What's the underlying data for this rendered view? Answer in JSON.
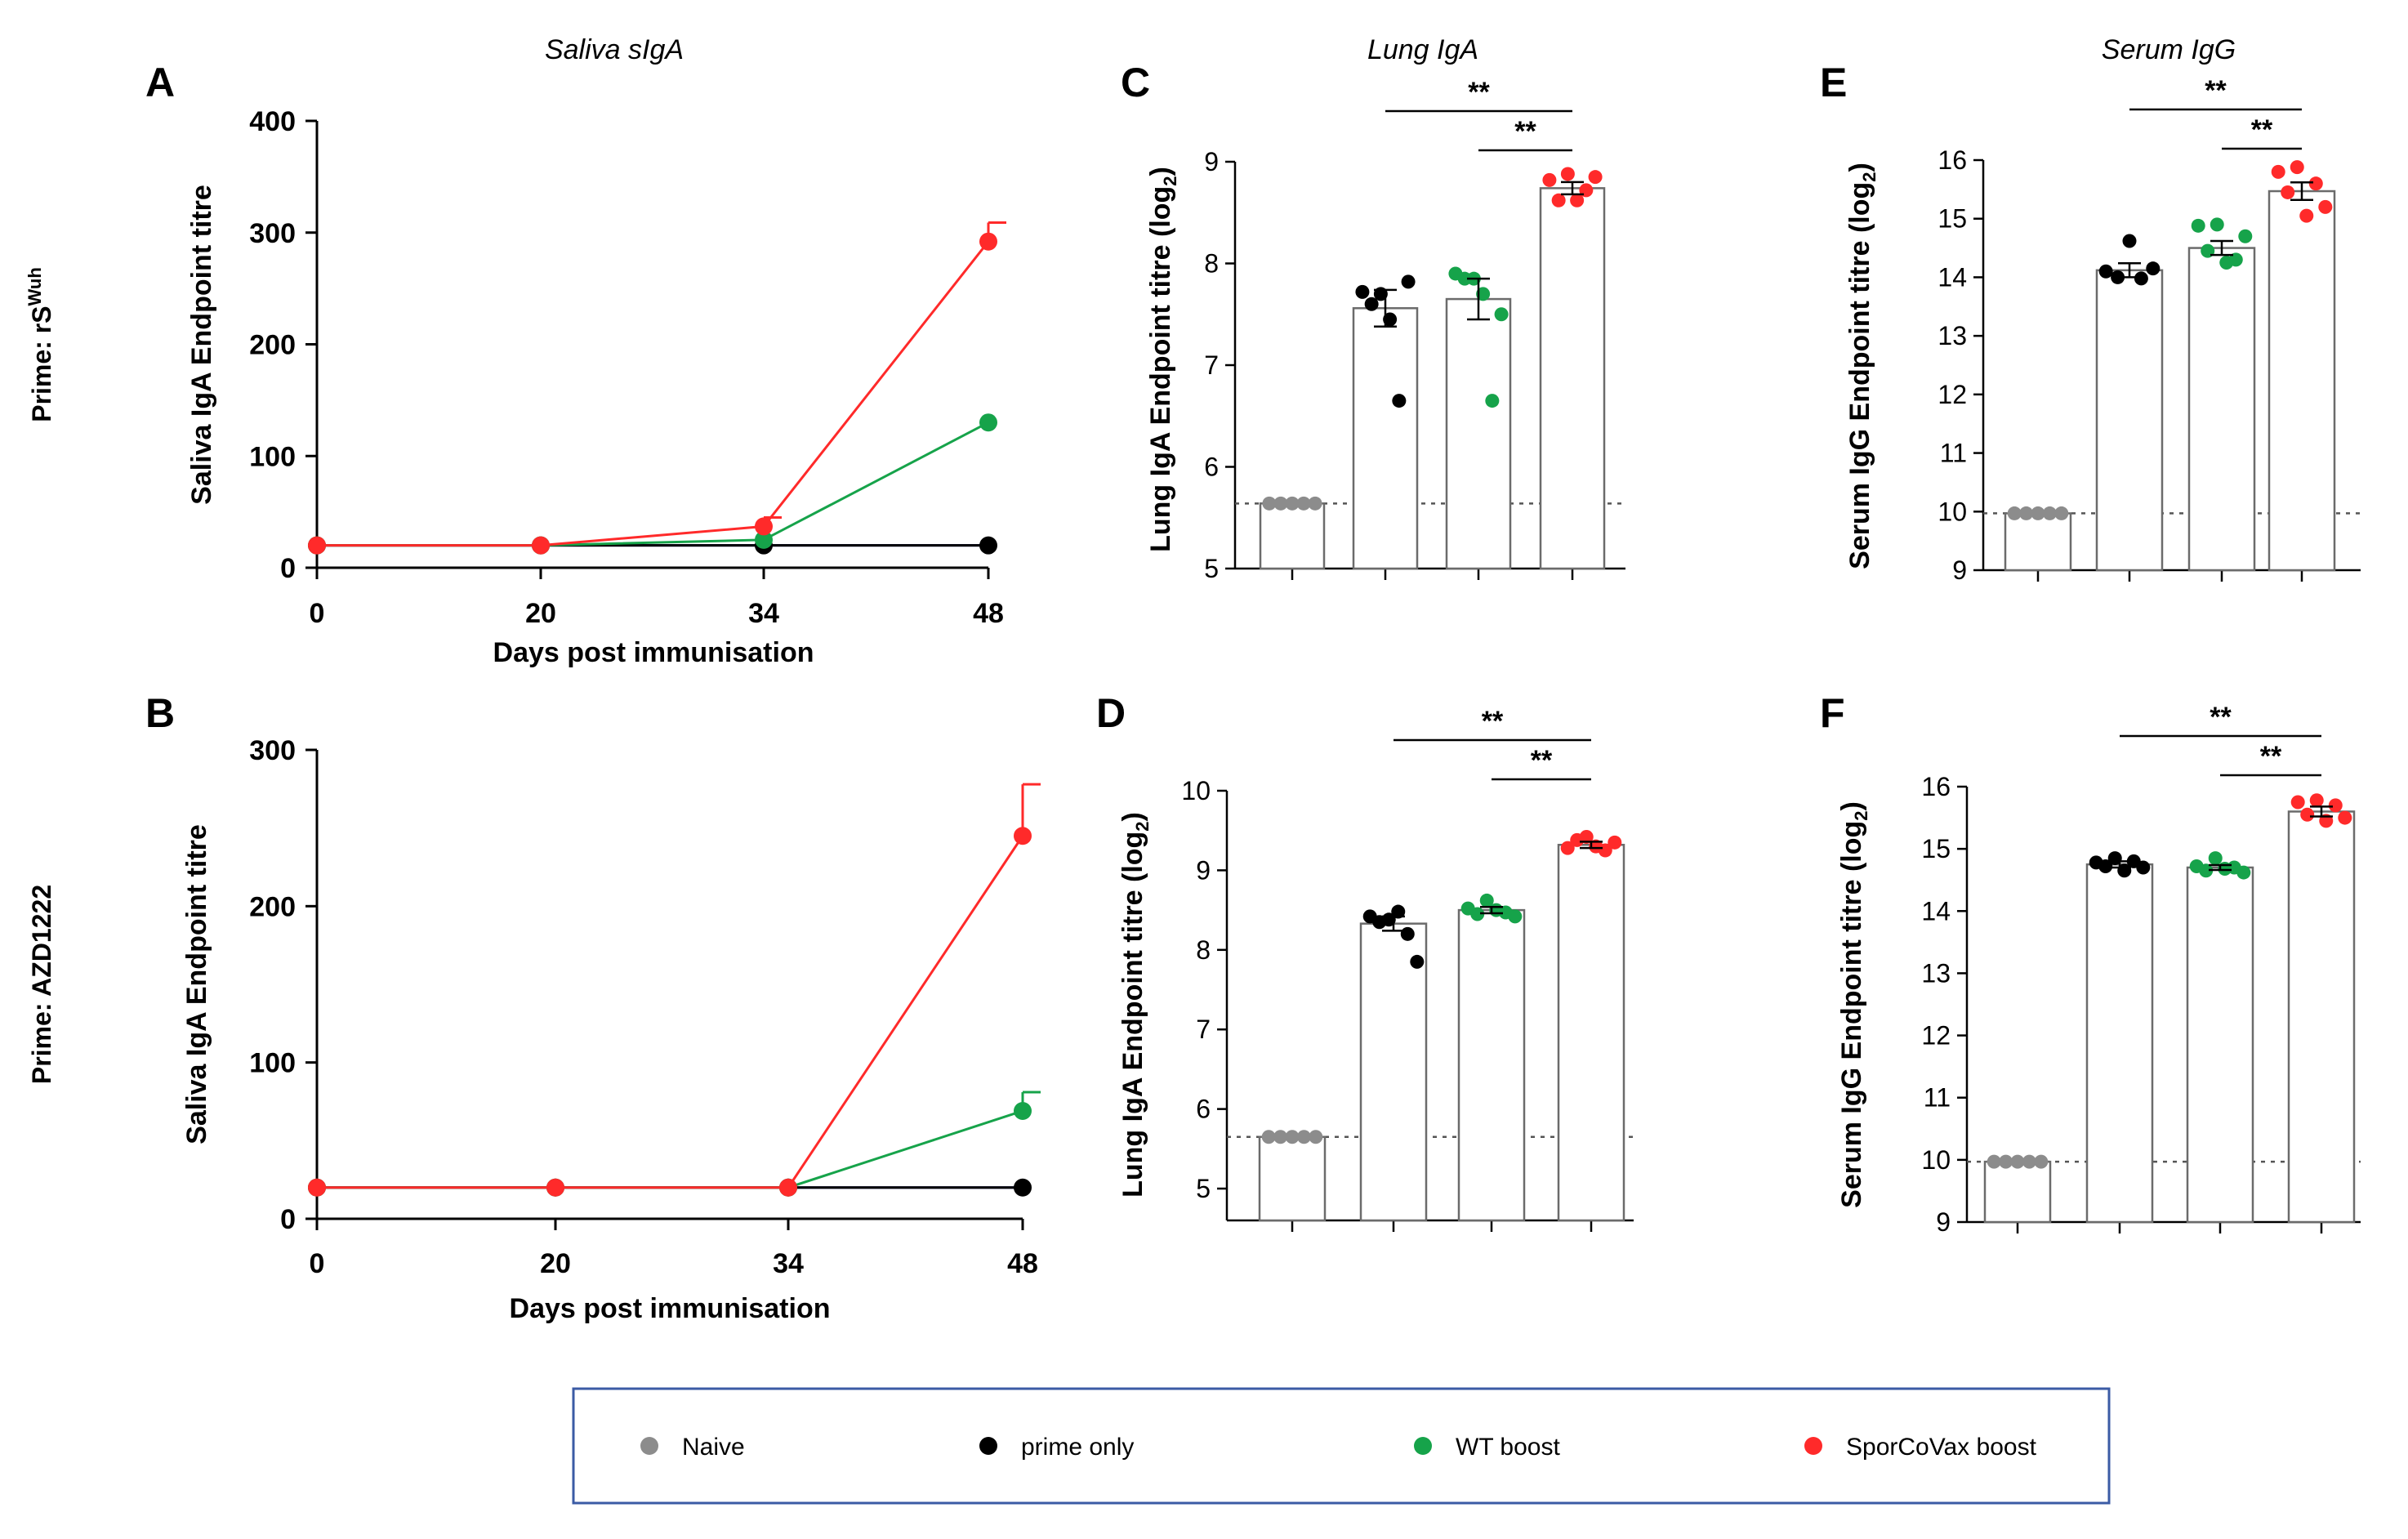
{
  "chart_data": [
    {
      "id": "A",
      "type": "line",
      "panel_label": "A",
      "title": "Saliva sIgA",
      "row_label": "Prime: rS",
      "row_label_sup": "Wuh",
      "ylabel": "Saliva IgA Endpoint titre",
      "xlabel": "Days post immunisation",
      "x": [
        0,
        20,
        34,
        48
      ],
      "xticks": [
        "0",
        "20",
        "34",
        "48"
      ],
      "ylim": [
        0,
        400
      ],
      "yticks": [
        "0",
        "100",
        "200",
        "300",
        "400"
      ],
      "series": [
        {
          "name": "Naive",
          "color": "#000080",
          "values": [
            20,
            20,
            20,
            20
          ],
          "error": [
            0,
            0,
            0,
            0
          ],
          "show_markers": false
        },
        {
          "name": "prime only",
          "color": "#000000",
          "values": [
            20,
            20,
            20,
            20
          ],
          "error": [
            0,
            0,
            0,
            0
          ],
          "show_markers": true
        },
        {
          "name": "WT boost",
          "color": "#16a34a",
          "values": [
            20,
            20,
            25,
            130
          ],
          "error": [
            0,
            0,
            0,
            0
          ],
          "show_markers": true
        },
        {
          "name": "SporCoVax boost",
          "color": "#ff2a2a",
          "values": [
            20,
            20,
            37,
            292
          ],
          "error": [
            0,
            0,
            8,
            17
          ],
          "show_markers": true
        }
      ]
    },
    {
      "id": "B",
      "type": "line",
      "panel_label": "B",
      "title": "",
      "row_label": "Prime: AZD1222",
      "row_label_sup": "",
      "ylabel": "Saliva IgA Endpoint titre",
      "xlabel": "Days post immunisation",
      "x": [
        0,
        20,
        34,
        48
      ],
      "xticks": [
        "0",
        "20",
        "34",
        "48"
      ],
      "ylim": [
        0,
        300
      ],
      "yticks": [
        "0",
        "100",
        "200",
        "300"
      ],
      "series": [
        {
          "name": "Naive",
          "color": "#000080",
          "values": [
            20,
            20,
            20,
            20
          ],
          "error": [
            0,
            0,
            0,
            0
          ],
          "show_markers": false
        },
        {
          "name": "prime only",
          "color": "#000000",
          "values": [
            20,
            20,
            20,
            20
          ],
          "error": [
            0,
            0,
            0,
            0
          ],
          "show_markers": true
        },
        {
          "name": "WT boost",
          "color": "#16a34a",
          "values": [
            20,
            20,
            20,
            69
          ],
          "error": [
            0,
            0,
            0,
            12
          ],
          "show_markers": true
        },
        {
          "name": "SporCoVax boost",
          "color": "#ff2a2a",
          "values": [
            20,
            20,
            20,
            245
          ],
          "error": [
            0,
            0,
            0,
            33
          ],
          "show_markers": true
        }
      ]
    },
    {
      "id": "C",
      "type": "bar",
      "panel_label": "C",
      "title": "Lung IgA",
      "ylabel": "Lung IgA Endpoint titre (log",
      "ylabel_sub": "2",
      "ylabel_end": ")",
      "ylim": [
        5,
        9
      ],
      "yticks": [
        "5",
        "6",
        "7",
        "8",
        "9"
      ],
      "baseline": 5.64,
      "categories": [
        "Naive",
        "prime only",
        "WT boost",
        "SporCoVax boost"
      ],
      "bars": [
        {
          "group": "Naive",
          "color": "#8c8c8c",
          "mean": 5.64,
          "sem": 0,
          "points": [
            5.64,
            5.64,
            5.64,
            5.64,
            5.64
          ]
        },
        {
          "group": "prime only",
          "color": "#000000",
          "mean": 7.56,
          "sem": 0.18,
          "points": [
            7.72,
            7.6,
            7.7,
            7.45,
            6.65,
            7.82
          ]
        },
        {
          "group": "WT boost",
          "color": "#16a34a",
          "mean": 7.65,
          "sem": 0.2,
          "points": [
            7.9,
            7.85,
            7.85,
            7.7,
            6.65,
            7.5
          ]
        },
        {
          "group": "SporCoVax boost",
          "color": "#ff2a2a",
          "mean": 8.74,
          "sem": 0.06,
          "points": [
            8.82,
            8.62,
            8.88,
            8.62,
            8.72,
            8.85
          ]
        }
      ],
      "significance": [
        {
          "from": 1,
          "to": 3,
          "label": "**"
        },
        {
          "from": 2,
          "to": 3,
          "label": "**"
        }
      ]
    },
    {
      "id": "D",
      "type": "bar",
      "panel_label": "D",
      "title": "",
      "ylabel": "Lung IgA Endpoint titre (log",
      "ylabel_sub": "2",
      "ylabel_end": ")",
      "ylim": [
        4.6,
        10
      ],
      "yticks": [
        "5",
        "6",
        "7",
        "8",
        "9",
        "10"
      ],
      "baseline": 5.65,
      "categories": [
        "Naive",
        "prime only",
        "WT boost",
        "SporCoVax boost"
      ],
      "bars": [
        {
          "group": "Naive",
          "color": "#8c8c8c",
          "mean": 5.65,
          "sem": 0,
          "points": [
            5.65,
            5.65,
            5.65,
            5.65,
            5.65
          ]
        },
        {
          "group": "prime only",
          "color": "#000000",
          "mean": 8.33,
          "sem": 0.09,
          "points": [
            8.42,
            8.35,
            8.38,
            8.48,
            8.2,
            7.85
          ]
        },
        {
          "group": "WT boost",
          "color": "#16a34a",
          "mean": 8.5,
          "sem": 0.04,
          "points": [
            8.52,
            8.45,
            8.62,
            8.5,
            8.47,
            8.42
          ]
        },
        {
          "group": "SporCoVax boost",
          "color": "#ff2a2a",
          "mean": 9.32,
          "sem": 0.04,
          "points": [
            9.28,
            9.38,
            9.42,
            9.3,
            9.25,
            9.35
          ]
        }
      ],
      "significance": [
        {
          "from": 1,
          "to": 3,
          "label": "**"
        },
        {
          "from": 2,
          "to": 3,
          "label": "**"
        }
      ]
    },
    {
      "id": "E",
      "type": "bar",
      "panel_label": "E",
      "title": "Serum IgG",
      "ylabel": "Serum IgG Endpoint titre (log",
      "ylabel_sub": "2",
      "ylabel_end": ")",
      "ylim": [
        9,
        16
      ],
      "yticks": [
        "9",
        "10",
        "11",
        "12",
        "13",
        "14",
        "15",
        "16"
      ],
      "baseline": 9.97,
      "categories": [
        "Naive",
        "prime only",
        "WT boost",
        "SporCoVax boost"
      ],
      "bars": [
        {
          "group": "Naive",
          "color": "#8c8c8c",
          "mean": 9.97,
          "sem": 0,
          "points": [
            9.97,
            9.97,
            9.97,
            9.97,
            9.97
          ]
        },
        {
          "group": "prime only",
          "color": "#000000",
          "mean": 14.12,
          "sem": 0.12,
          "points": [
            14.1,
            14.0,
            14.62,
            13.98,
            14.15
          ]
        },
        {
          "group": "WT boost",
          "color": "#16a34a",
          "mean": 14.5,
          "sem": 0.12,
          "points": [
            14.88,
            14.45,
            14.9,
            14.25,
            14.3,
            14.7
          ]
        },
        {
          "group": "SporCoVax boost",
          "color": "#ff2a2a",
          "mean": 15.47,
          "sem": 0.15,
          "points": [
            15.8,
            15.45,
            15.88,
            15.05,
            15.6,
            15.2
          ]
        }
      ],
      "significance": [
        {
          "from": 1,
          "to": 3,
          "label": "**"
        },
        {
          "from": 2,
          "to": 3,
          "label": "**"
        }
      ]
    },
    {
      "id": "F",
      "type": "bar",
      "panel_label": "F",
      "title": "",
      "ylabel": "Serum IgG Endpoint titre (log",
      "ylabel_sub": "2",
      "ylabel_end": ")",
      "ylim": [
        9,
        16
      ],
      "yticks": [
        "9",
        "10",
        "11",
        "12",
        "13",
        "14",
        "15",
        "16"
      ],
      "baseline": 9.97,
      "categories": [
        "Naive",
        "prime only",
        "WT boost",
        "SporCoVax boost"
      ],
      "bars": [
        {
          "group": "Naive",
          "color": "#8c8c8c",
          "mean": 9.97,
          "sem": 0,
          "points": [
            9.97,
            9.97,
            9.97,
            9.97,
            9.97
          ]
        },
        {
          "group": "prime only",
          "color": "#000000",
          "mean": 14.75,
          "sem": 0.05,
          "points": [
            14.78,
            14.72,
            14.85,
            14.65,
            14.8,
            14.7
          ]
        },
        {
          "group": "WT boost",
          "color": "#16a34a",
          "mean": 14.7,
          "sem": 0.04,
          "points": [
            14.72,
            14.65,
            14.85,
            14.68,
            14.7,
            14.62
          ]
        },
        {
          "group": "SporCoVax boost",
          "color": "#ff2a2a",
          "mean": 15.6,
          "sem": 0.08,
          "points": [
            15.75,
            15.55,
            15.78,
            15.45,
            15.7,
            15.5
          ]
        }
      ],
      "significance": [
        {
          "from": 1,
          "to": 3,
          "label": "**"
        },
        {
          "from": 2,
          "to": 3,
          "label": "**"
        }
      ]
    }
  ],
  "legend": {
    "items": [
      {
        "label": "Naive",
        "color": "#8c8c8c"
      },
      {
        "label": "prime only",
        "color": "#000000"
      },
      {
        "label": "WT boost",
        "color": "#16a34a"
      },
      {
        "label": "SporCoVax boost",
        "color": "#ff2a2a"
      }
    ],
    "border_color": "#3b5ba5"
  }
}
